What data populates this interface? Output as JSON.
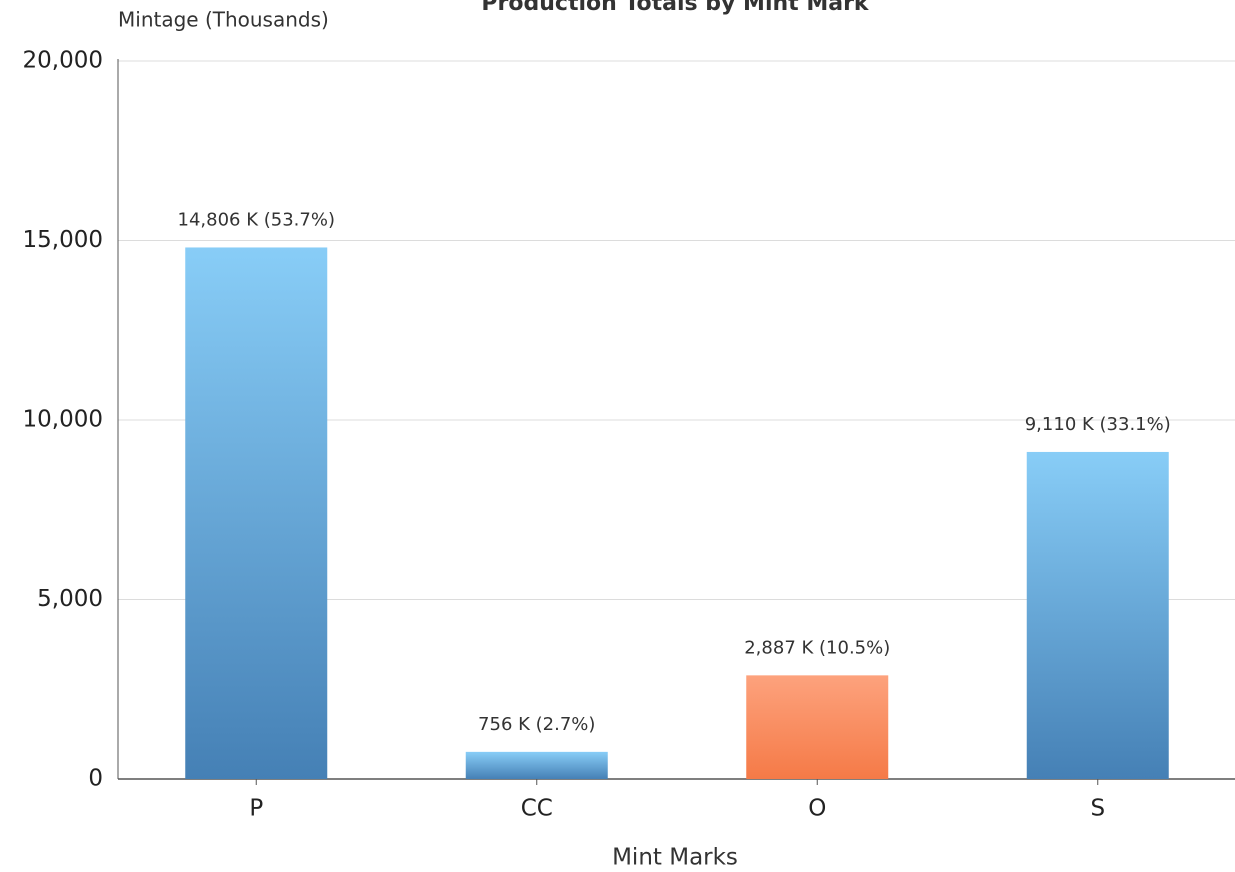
{
  "chart_data": {
    "type": "bar",
    "title": "Production Totals by Mint Mark",
    "y_axis_label": "Mintage (Thousands)",
    "x_axis_label": "Mint Marks",
    "categories": [
      "P",
      "CC",
      "O",
      "S"
    ],
    "values": [
      14806,
      756,
      2887,
      9110
    ],
    "value_labels": [
      "14,806 K (53.7%)",
      "756 K (2.7%)",
      "2,887 K (10.5%)",
      "9,110 K (33.1%)"
    ],
    "colors": [
      [
        "#88cdf7",
        "#4580b5"
      ],
      [
        "#88cdf7",
        "#4580b5"
      ],
      [
        "#fda27d",
        "#f57a47"
      ],
      [
        "#88cdf7",
        "#4580b5"
      ]
    ],
    "ylim": [
      0,
      20000
    ],
    "yticks": [
      0,
      {
        "value": 5000,
        "label": "5,000"
      },
      {
        "value": 10000,
        "label": "10,000"
      },
      {
        "value": 15000,
        "label": "15,000"
      },
      {
        "value": 20000,
        "label": "20,000"
      }
    ],
    "grid": true
  }
}
